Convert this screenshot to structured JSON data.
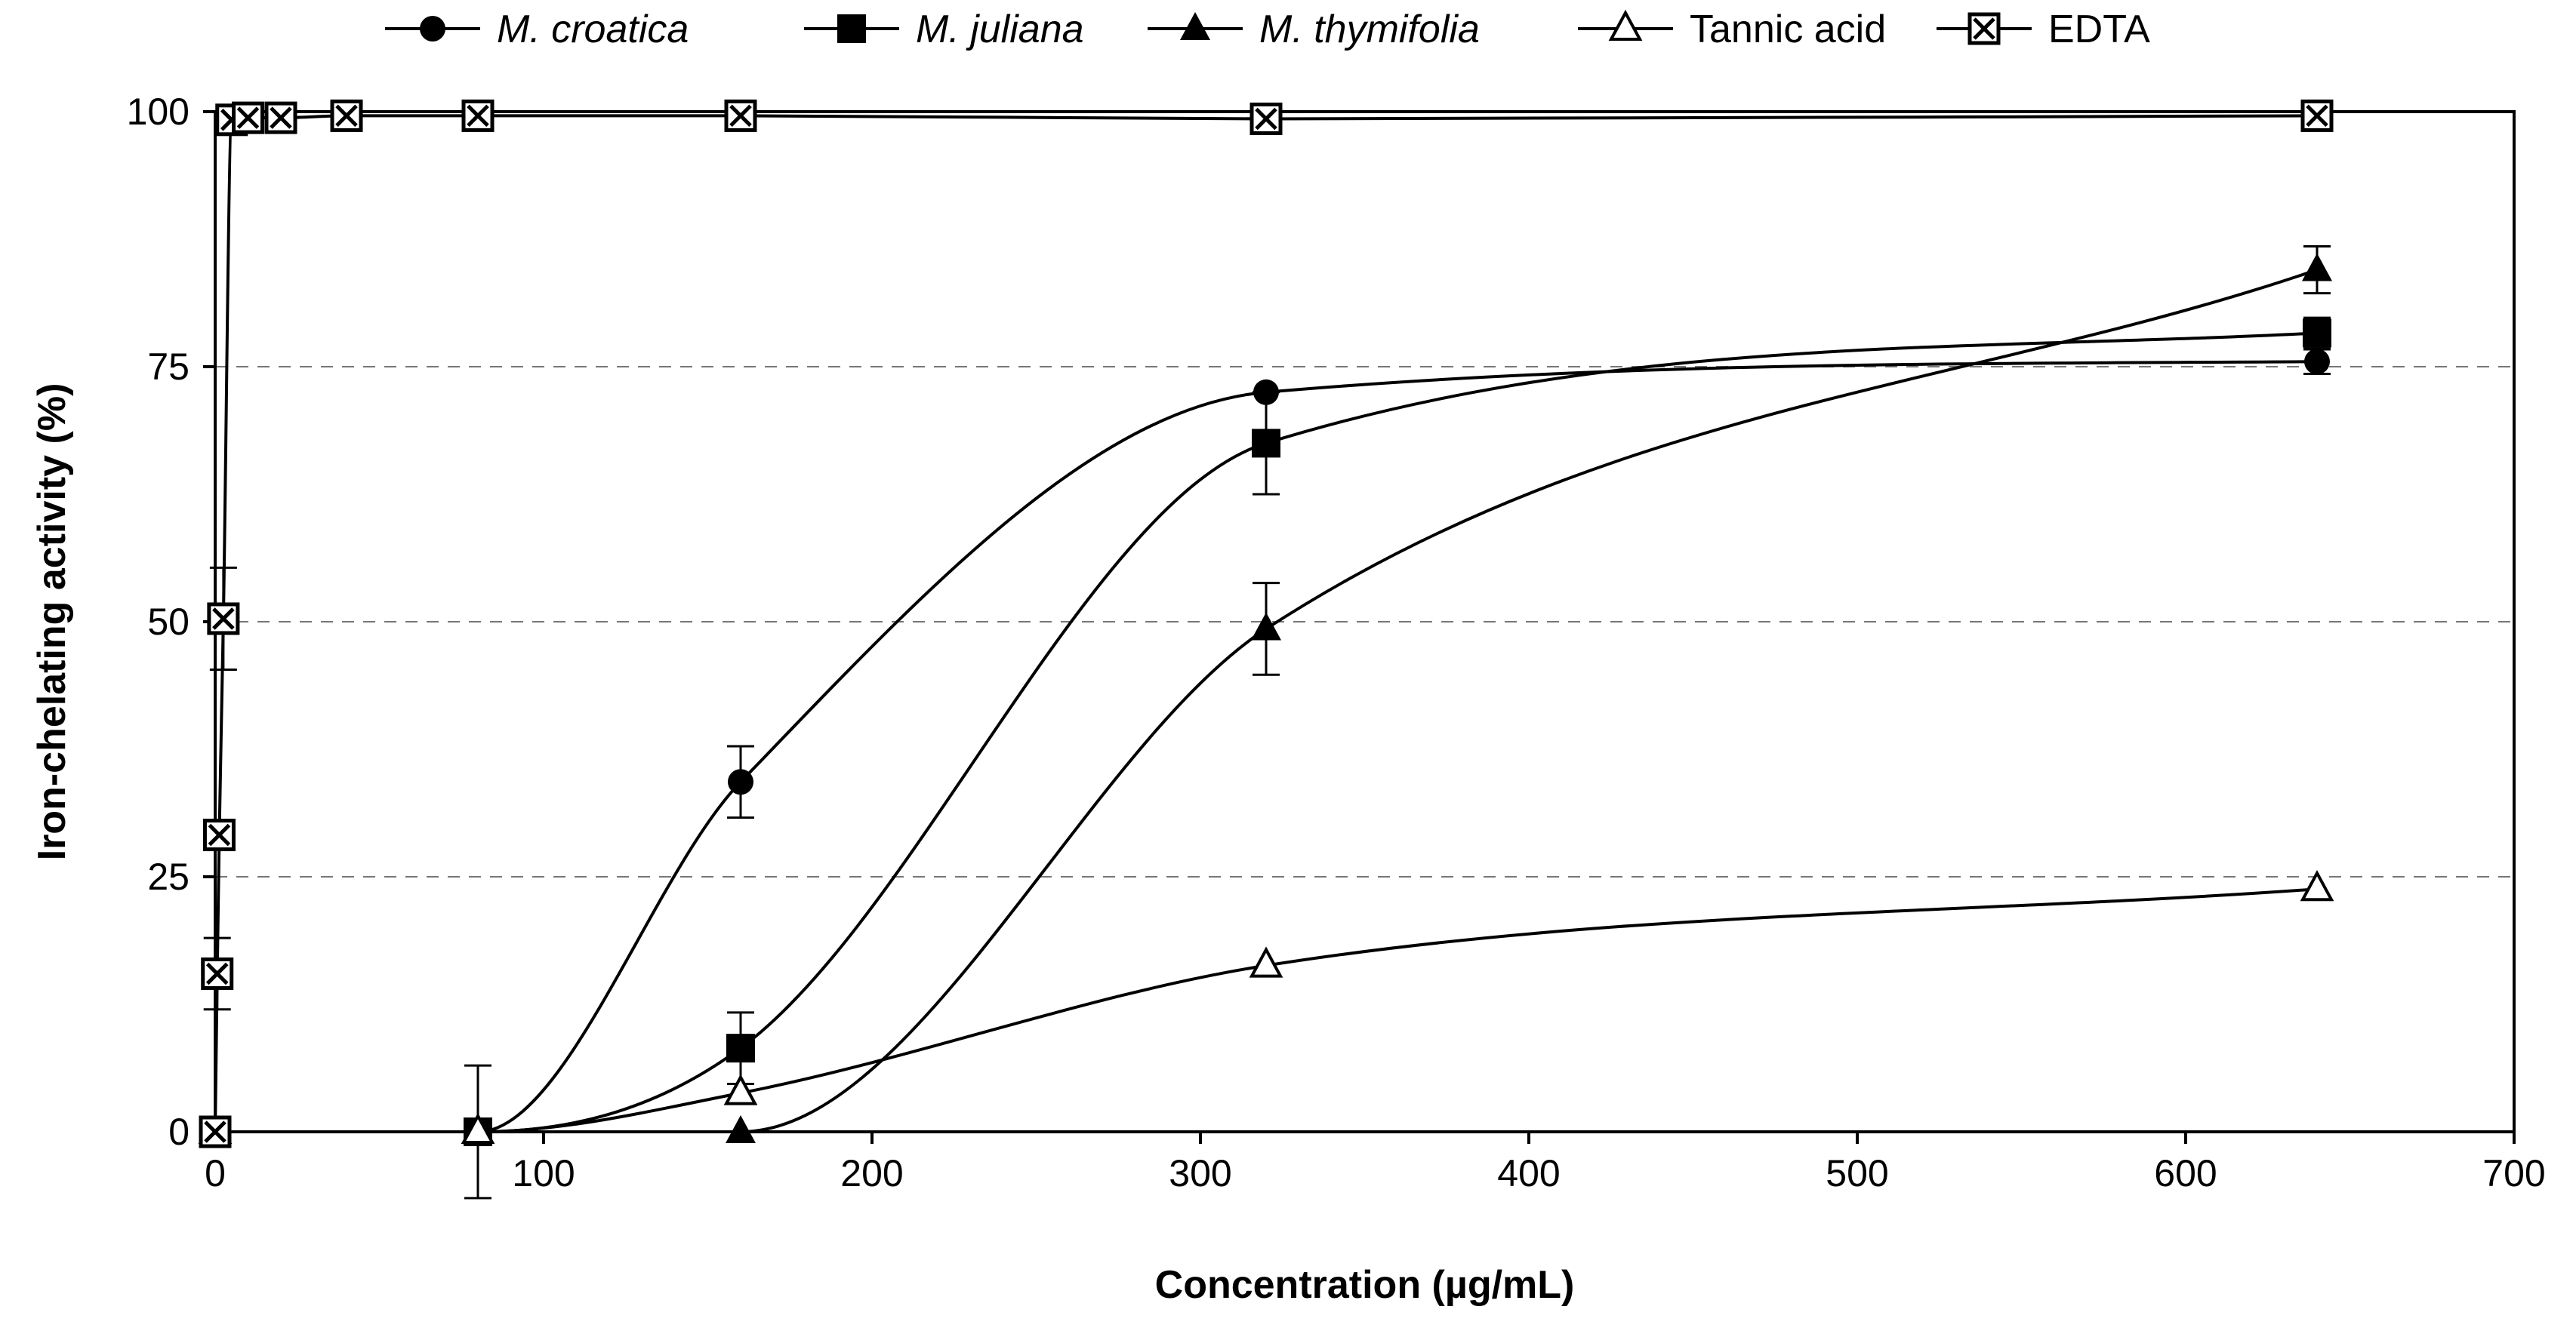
{
  "chart_data": {
    "type": "line",
    "title": "",
    "xlabel": "Concentration (µg/mL)",
    "ylabel": "Iron-chelating activity (%)",
    "xlim": [
      0,
      700
    ],
    "ylim": [
      0,
      100
    ],
    "x_ticks": [
      0,
      100,
      200,
      300,
      400,
      500,
      600,
      700
    ],
    "y_ticks": [
      0,
      25,
      50,
      75,
      100
    ],
    "x_tick_labels": [
      "0",
      "100",
      "200",
      "300",
      "400",
      "500",
      "600",
      "700"
    ],
    "y_tick_labels": [
      "0",
      "25",
      "50",
      "75",
      "100"
    ],
    "grid": "horizontal dashed",
    "legend_position": "top",
    "series": [
      {
        "name": "M. croatica",
        "italic": true,
        "marker": "filled-circle",
        "x": [
          0,
          80,
          160,
          320,
          640
        ],
        "y": [
          0,
          0,
          34.3,
          72.5,
          75.5
        ],
        "error": [
          0,
          0,
          3.5,
          0,
          1.2
        ]
      },
      {
        "name": "M. juliana",
        "italic": true,
        "marker": "filled-square",
        "x": [
          0,
          80,
          160,
          320,
          640
        ],
        "y": [
          0,
          0,
          8.2,
          67.5,
          78.3
        ],
        "error": [
          0,
          6.5,
          3.5,
          5,
          1.5
        ]
      },
      {
        "name": "M. thymifolia",
        "italic": true,
        "marker": "filled-triangle",
        "x": [
          0,
          80,
          160,
          320,
          640
        ],
        "y": [
          0,
          0,
          0,
          49.3,
          84.5
        ],
        "error": [
          0,
          0,
          0,
          4.5,
          2.3
        ]
      },
      {
        "name": "Tannic acid",
        "italic": false,
        "marker": "open-triangle",
        "x": [
          0,
          80,
          160,
          320,
          640
        ],
        "y": [
          0,
          0,
          3.8,
          16.3,
          23.8
        ],
        "error": [
          0,
          0,
          0,
          0,
          0
        ]
      },
      {
        "name": "EDTA",
        "italic": false,
        "marker": "crossed-square",
        "x": [
          0,
          0.625,
          1.25,
          2.5,
          5,
          10,
          20,
          40,
          80,
          160,
          320,
          640
        ],
        "y": [
          0,
          15.5,
          29.1,
          50.3,
          99.2,
          99.4,
          99.4,
          99.6,
          99.6,
          99.6,
          99.3,
          99.6
        ],
        "error": [
          0,
          3.5,
          0,
          5,
          0,
          0,
          0,
          0,
          0,
          0,
          0,
          0
        ]
      }
    ]
  }
}
